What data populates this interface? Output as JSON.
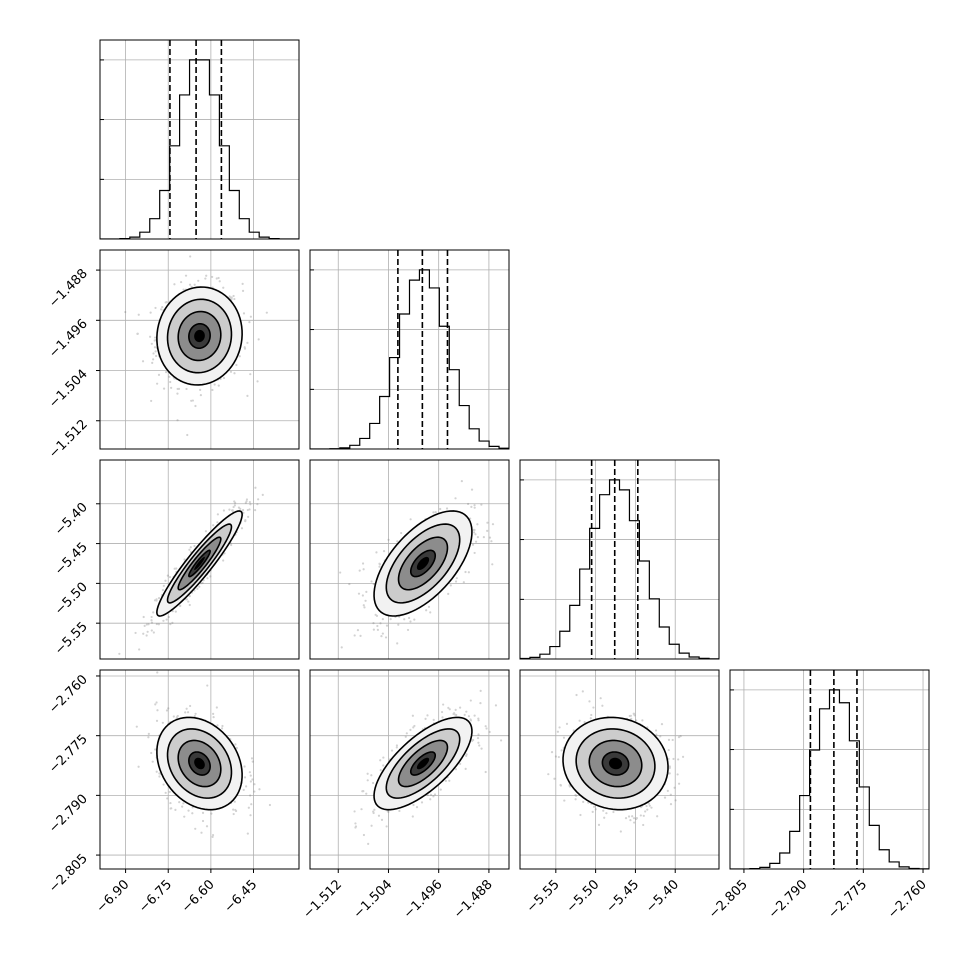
{
  "chart_data": {
    "type": "corner",
    "title": "",
    "grid": true,
    "parameters": [
      {
        "index": 0,
        "mean": -6.64,
        "sd": 0.075,
        "range": [
          -6.99,
          -6.29
        ],
        "ticks": [
          -6.9,
          -6.75,
          -6.6,
          -6.45
        ],
        "tick_labels": [
          "−6.90",
          "−6.75",
          "−6.60",
          "−6.45"
        ],
        "quantiles": [
          -6.744,
          -6.652,
          -6.563
        ]
      },
      {
        "index": 1,
        "mean": -1.4985,
        "sd": 0.0039,
        "range": [
          -1.5165,
          -1.4848
        ],
        "ticks": [
          -1.512,
          -1.504,
          -1.496,
          -1.488
        ],
        "tick_labels": [
          "−1.512",
          "−1.504",
          "−1.496",
          "−1.488"
        ],
        "quantiles": [
          -1.5025,
          -1.4986,
          -1.4946
        ]
      },
      {
        "index": 2,
        "mean": -5.475,
        "sd": 0.033,
        "range": [
          -5.595,
          -5.345
        ],
        "ticks": [
          -5.55,
          -5.5,
          -5.45,
          -5.4
        ],
        "tick_labels": [
          "−5.55",
          "−5.50",
          "−5.45",
          "−5.40"
        ],
        "quantiles": [
          -5.505,
          -5.476,
          -5.447
        ]
      },
      {
        "index": 3,
        "mean": -2.782,
        "sd": 0.0058,
        "range": [
          -2.8085,
          -2.7585
        ],
        "ticks": [
          -2.805,
          -2.79,
          -2.775,
          -2.76
        ],
        "tick_labels": [
          "−2.805",
          "−2.790",
          "−2.775",
          "−2.760"
        ],
        "quantiles": [
          -2.7883,
          -2.7824,
          -2.7766
        ]
      }
    ],
    "correlations": [
      {
        "pair": [
          0,
          1
        ],
        "rho": 0.05
      },
      {
        "pair": [
          0,
          2
        ],
        "rho": 0.93
      },
      {
        "pair": [
          1,
          2
        ],
        "rho": 0.6
      },
      {
        "pair": [
          0,
          3
        ],
        "rho": -0.25
      },
      {
        "pair": [
          1,
          3
        ],
        "rho": 0.7
      },
      {
        "pair": [
          2,
          3
        ],
        "rho": -0.08
      }
    ],
    "histograms": [
      {
        "param": 0,
        "bins": 20,
        "shape": "approximately gaussian"
      },
      {
        "param": 1,
        "bins": 20,
        "shape": "approximately gaussian"
      },
      {
        "param": 2,
        "bins": 20,
        "shape": "approximately gaussian"
      },
      {
        "param": 3,
        "bins": 20,
        "shape": "approximately gaussian"
      }
    ],
    "contour_levels_sigma": [
      0.5,
      1.0,
      1.5,
      2.0
    ]
  }
}
